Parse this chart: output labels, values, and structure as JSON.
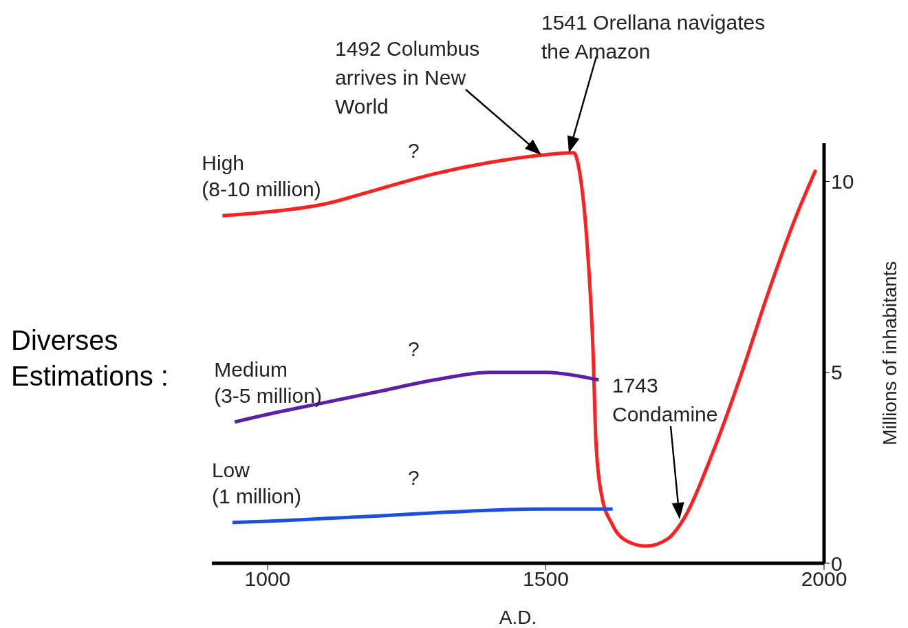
{
  "chart_data": {
    "type": "line",
    "xlabel": "A.D.",
    "ylabel": "Millions of inhabitants",
    "xlim": [
      900,
      2000
    ],
    "ylim": [
      0,
      11
    ],
    "xticks": [
      1000,
      1500,
      2000
    ],
    "yticks": [
      0,
      5,
      10
    ],
    "grid": false,
    "legend": false,
    "marker": "none",
    "line_style": "solid",
    "series": [
      {
        "name": "High (8-10 million)",
        "color": "#ff2020",
        "x": [
          919,
          1000,
          1100,
          1200,
          1300,
          1400,
          1500,
          1550,
          1560,
          1575,
          1585,
          1590,
          1600,
          1620,
          1650,
          1680,
          1720,
          1743,
          1800,
          1850,
          1900,
          1950,
          1985
        ],
        "values": [
          9.1,
          9.2,
          9.4,
          9.8,
          10.2,
          10.5,
          10.7,
          10.75,
          10.3,
          8.2,
          5.5,
          3.2,
          1.8,
          1.0,
          0.55,
          0.45,
          0.65,
          1.05,
          2.9,
          4.9,
          7.1,
          9.1,
          10.3
        ]
      },
      {
        "name": "Medium (3-5 million)",
        "color": "#5b1fa8",
        "x": [
          941,
          1000,
          1100,
          1200,
          1300,
          1400,
          1500,
          1560,
          1595
        ],
        "values": [
          3.7,
          3.9,
          4.2,
          4.5,
          4.8,
          5.0,
          5.0,
          4.9,
          4.8
        ]
      },
      {
        "name": "Low (1 million)",
        "color": "#1a4fe0",
        "x": [
          937,
          1000,
          1100,
          1200,
          1300,
          1400,
          1500,
          1620
        ],
        "values": [
          1.07,
          1.1,
          1.17,
          1.24,
          1.32,
          1.39,
          1.42,
          1.42
        ]
      }
    ],
    "annotations": [
      "?",
      "?",
      "?",
      "1492 Columbus arrives in New World",
      "1541 Orellana navigates the Amazon",
      "1743 Condamine",
      "Diverses Estimations :"
    ]
  }
}
